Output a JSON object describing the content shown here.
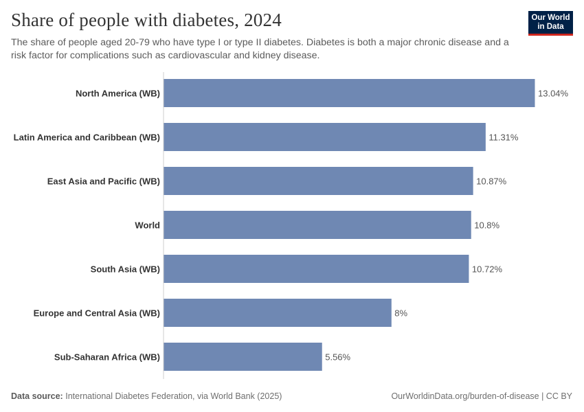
{
  "header": {
    "title": "Share of people with diabetes, 2024",
    "subtitle": "The share of people aged 20-79 who have type I or type II diabetes. Diabetes is both a major chronic disease and a risk factor for complications such as cardiovascular and kidney disease."
  },
  "logo": {
    "line1": "Our World",
    "line2": "in Data"
  },
  "footer": {
    "source_label": "Data source:",
    "source_text": "International Diabetes Federation, via World Bank (2025)",
    "right_text": "OurWorldinData.org/burden-of-disease | CC BY"
  },
  "colors": {
    "bar": "#6f88b3",
    "axis": "#cccccc",
    "label": "#333333",
    "value": "#555555"
  },
  "chart_data": {
    "type": "bar",
    "orientation": "horizontal",
    "title": "Share of people with diabetes, 2024",
    "categories": [
      "North America (WB)",
      "Latin America and Caribbean (WB)",
      "East Asia and Pacific (WB)",
      "World",
      "South Asia (WB)",
      "Europe and Central Asia (WB)",
      "Sub-Saharan Africa (WB)"
    ],
    "values": [
      13.04,
      11.31,
      10.87,
      10.8,
      10.72,
      8,
      5.56
    ],
    "value_labels": [
      "13.04%",
      "11.31%",
      "10.87%",
      "10.8%",
      "10.72%",
      "8%",
      "5.56%"
    ],
    "xlim": [
      0,
      13.04
    ],
    "grid": false,
    "legend": "none"
  }
}
